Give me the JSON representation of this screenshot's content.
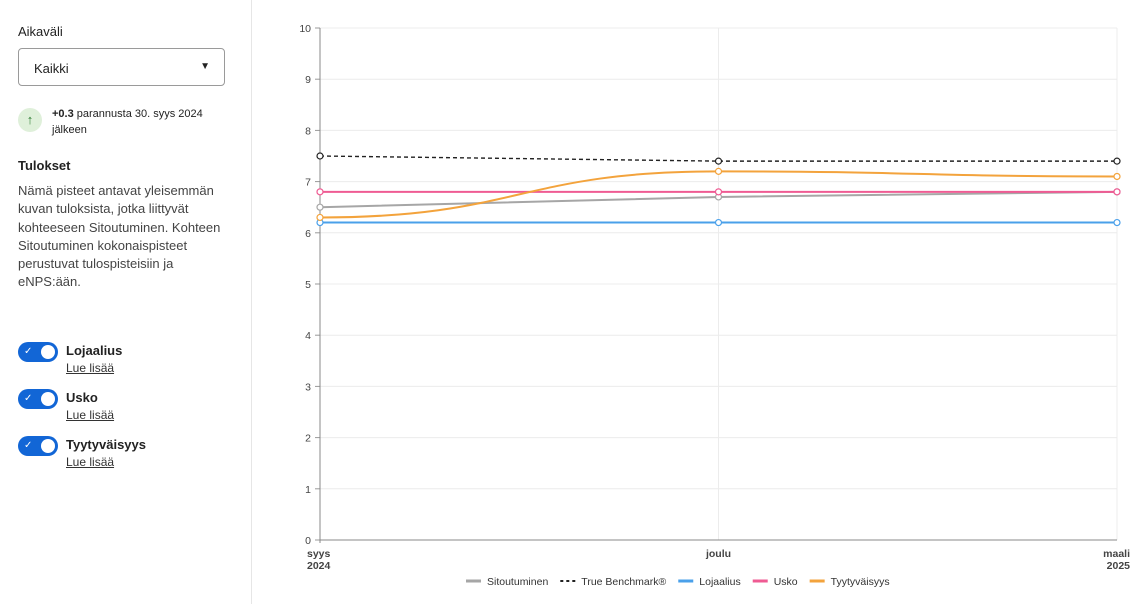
{
  "sidebar": {
    "time_label": "Aikaväli",
    "time_select": "Kaikki",
    "trend": {
      "value": "+0.3",
      "text": " parannusta 30. syys 2024 jälkeen"
    },
    "results_heading": "Tulokset",
    "description": "Nämä pisteet antavat yleisemmän kuvan tuloksista, jotka liittyvät kohteeseen Sitoutuminen. Kohteen Sitoutuminen kokonaispisteet perustuvat tulospisteisiin ja eNPS:ään.",
    "toggles": [
      {
        "label": "Lojaalius",
        "link": "Lue lisää",
        "on": true
      },
      {
        "label": "Usko",
        "link": "Lue lisää",
        "on": true
      },
      {
        "label": "Tyytyväisyys",
        "link": "Lue lisää",
        "on": true
      }
    ]
  },
  "chart_data": {
    "type": "line",
    "x": [
      {
        "line1": "syys",
        "line2": "2024"
      },
      {
        "line1": "joulu",
        "line2": ""
      },
      {
        "line1": "maali",
        "line2": "2025"
      }
    ],
    "ylim": [
      0,
      10
    ],
    "yticks": [
      "0",
      "1",
      "2",
      "3",
      "4",
      "5",
      "6",
      "7",
      "8",
      "9",
      "10"
    ],
    "grid": true,
    "legend_position": "bottom",
    "series": [
      {
        "name": "Sitoutuminen",
        "values": [
          6.5,
          6.7,
          6.8
        ],
        "color": "#a6a6a6",
        "dashed": false,
        "curved": false
      },
      {
        "name": "True Benchmark®",
        "values": [
          7.5,
          7.4,
          7.4
        ],
        "color": "#222222",
        "dashed": true,
        "curved": false
      },
      {
        "name": "Lojaalius",
        "values": [
          6.2,
          6.2,
          6.2
        ],
        "color": "#4aa0ea",
        "dashed": false,
        "curved": false
      },
      {
        "name": "Usko",
        "values": [
          6.8,
          6.8,
          6.8
        ],
        "color": "#ef5b93",
        "dashed": false,
        "curved": false
      },
      {
        "name": "Tyytyväisyys",
        "values": [
          6.3,
          7.2,
          7.1
        ],
        "color": "#f3a33c",
        "dashed": false,
        "curved": true
      }
    ]
  }
}
